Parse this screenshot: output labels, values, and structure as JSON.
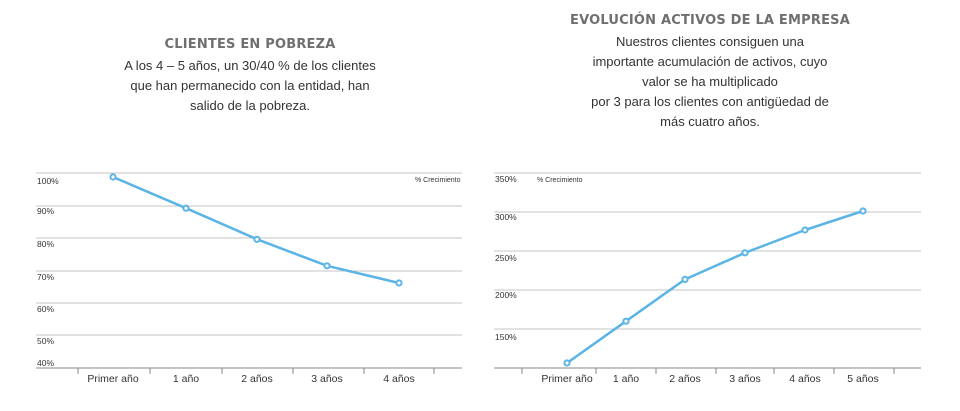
{
  "chart_data": [
    {
      "type": "line",
      "title": "CLIENTES EN POBREZA",
      "subtitle": "A los 4 – 5 años, un 30/40 % de los clientes que han permanecido con la entidad, han salido de la pobreza.",
      "annotation": "% Crecimiento",
      "categories": [
        "Primer año",
        "1 año",
        "2 años",
        "3 años",
        "4 años"
      ],
      "y_tick_labels": [
        "100%",
        "90%",
        "80%",
        "70%",
        "60%",
        "50%",
        "40%"
      ],
      "y_ticks": [
        100,
        90,
        80,
        70,
        60,
        50,
        40
      ],
      "ylim": [
        40,
        100
      ],
      "series": [
        {
          "values": [
            100,
            90,
            80,
            71.5,
            66
          ]
        }
      ],
      "grid": true,
      "color": "#5ab4e5"
    },
    {
      "type": "line",
      "title": "EVOLUCIÓN ACTIVOS DE LA EMPRESA",
      "subtitle_lines": [
        "Nuestros clientes consiguen una",
        "importante acumulación de activos, cuyo",
        "valor se ha multiplicado",
        "por 3 para los clientes con antigüedad de",
        "más cuatro años."
      ],
      "annotation": "% Crecimiento",
      "categories": [
        "Primer año",
        "1 año",
        "2 años",
        "3 años",
        "4 años",
        "5 años"
      ],
      "y_tick_labels": [
        "350%",
        "300%",
        "250%",
        "200%",
        "150%"
      ],
      "y_ticks": [
        350,
        300,
        250,
        200,
        150
      ],
      "ylim": [
        100,
        350
      ],
      "series": [
        {
          "values": [
            100,
            155,
            210,
            245,
            275,
            300
          ]
        }
      ],
      "grid": true,
      "color": "#5ab4e5"
    }
  ]
}
